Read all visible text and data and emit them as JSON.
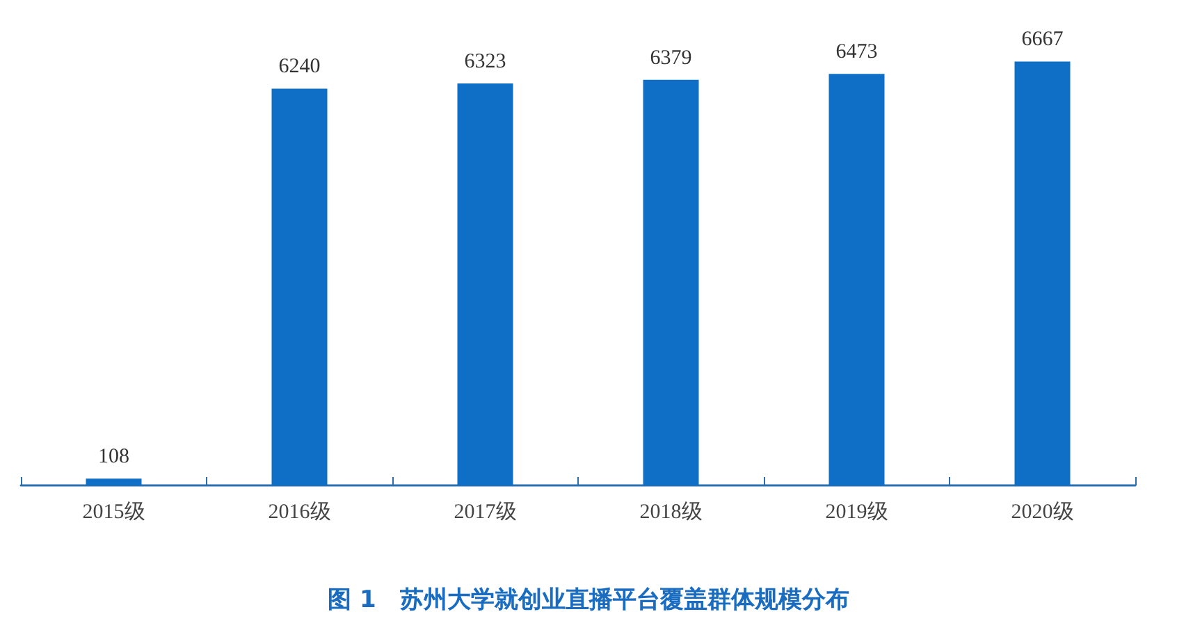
{
  "chart_data": {
    "type": "bar",
    "title": "图 1　苏州大学就创业直播平台覆盖群体规模分布",
    "categories": [
      "2015级",
      "2016级",
      "2017级",
      "2018级",
      "2019级",
      "2020级"
    ],
    "values": [
      108,
      6240,
      6323,
      6379,
      6473,
      6667
    ],
    "color": "#0f6fc6",
    "data_labels": true
  }
}
